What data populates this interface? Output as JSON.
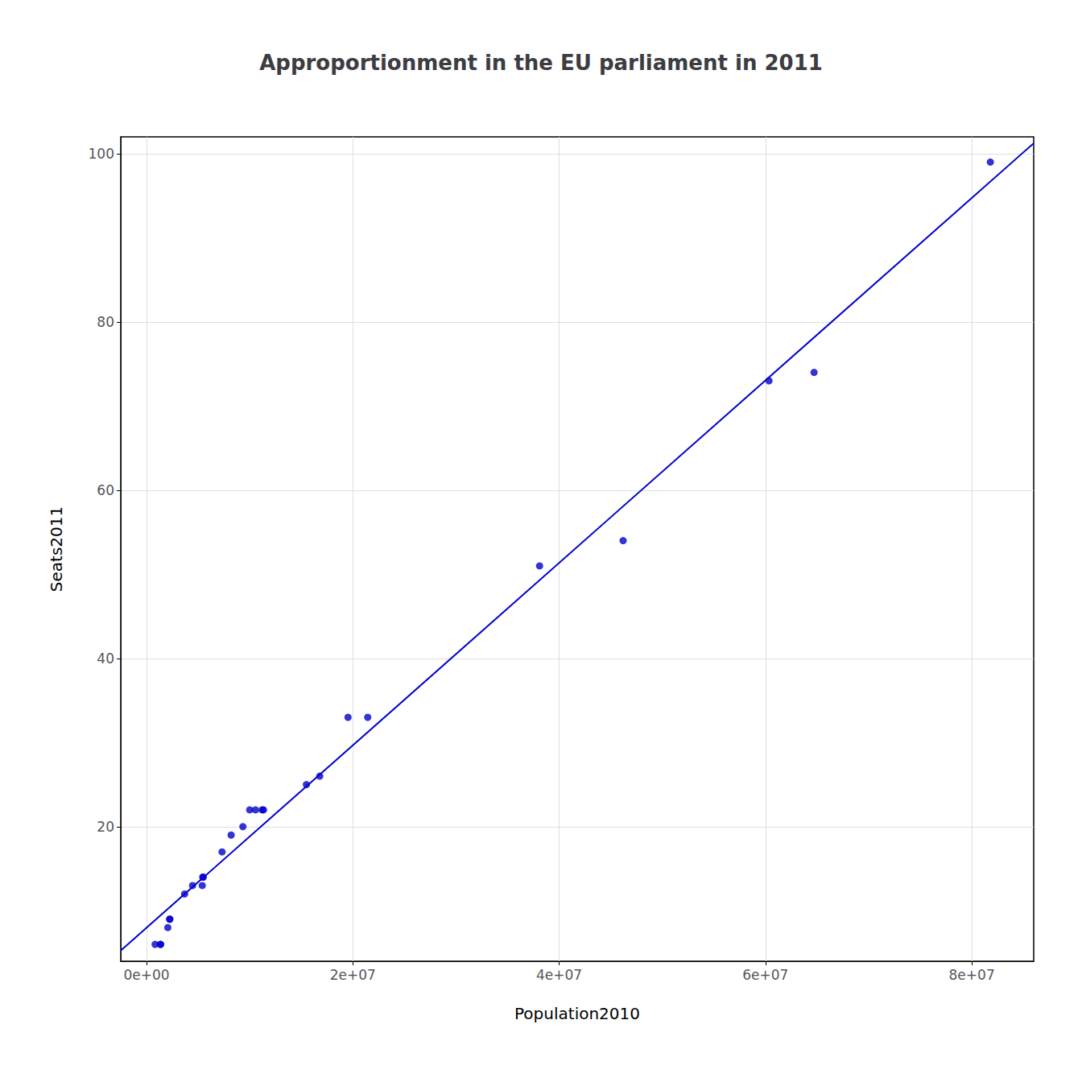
{
  "chart_data": {
    "type": "scatter",
    "title": "Approportionment in the EU parliament in 2011",
    "x_label": "Population2010",
    "y_label": "Seats2011",
    "series": [
      {
        "type": "scatter",
        "color": "#0000CC",
        "x": [
          831000,
          1340000,
          1370000,
          2060000,
          2240000,
          2260000,
          3690000,
          4460000,
          5400000,
          5450000,
          5500000,
          7320000,
          8200000,
          9340000,
          10000000,
          10560000,
          11200000,
          11340000,
          15500000,
          16790000,
          19530000,
          21440000,
          38100000,
          46200000,
          60340000,
          64710000,
          81800000
        ],
        "values": [
          6,
          6,
          6,
          8,
          9,
          9,
          12,
          13,
          13,
          14,
          14,
          17,
          19,
          20,
          22,
          22,
          22,
          22,
          25,
          26,
          33,
          33,
          51,
          54,
          73,
          74,
          99
        ]
      },
      {
        "type": "line",
        "color": "#0000CC",
        "x": [
          -2500000,
          86000000
        ],
        "values": [
          5.275,
          101.243
        ]
      }
    ],
    "xlim": [
      -2500000,
      86000000
    ],
    "ylim": [
      4,
      102
    ],
    "xticks": [
      {
        "value": 0,
        "label": "0e+00"
      },
      {
        "value": 20000000,
        "label": "2e+07"
      },
      {
        "value": 40000000,
        "label": "4e+07"
      },
      {
        "value": 60000000,
        "label": "6e+07"
      },
      {
        "value": 80000000,
        "label": "8e+07"
      }
    ],
    "yticks": [
      20,
      40,
      60,
      80,
      100
    ],
    "grid": true
  }
}
